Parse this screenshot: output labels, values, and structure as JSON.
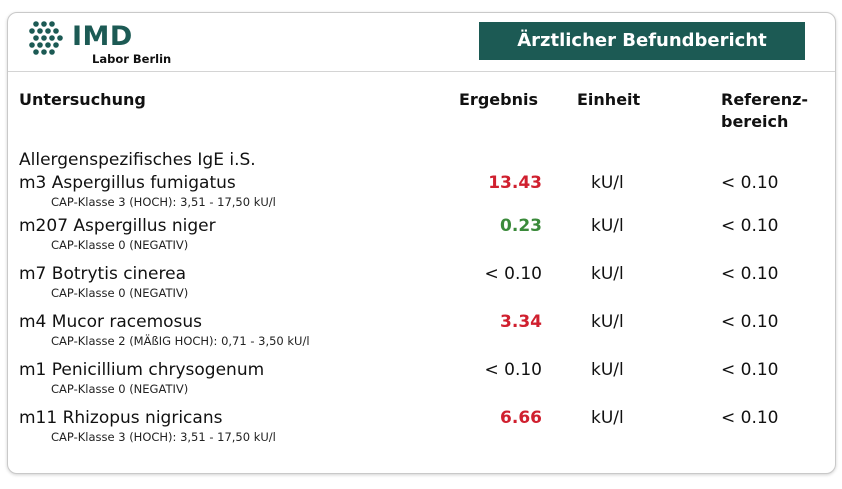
{
  "header": {
    "logo_name": "IMD",
    "logo_sub": "Labor Berlin",
    "banner": "Ärztlicher Befundbericht"
  },
  "columns": {
    "untersuchung": "Untersuchung",
    "ergebnis": "Ergebnis",
    "einheit": "Einheit",
    "referenz_line1": "Referenz-",
    "referenz_line2": "bereich"
  },
  "section_title": "Allergenspezifisches IgE i.S.",
  "colors": {
    "brand": "#1c5a54",
    "high": "#d0202f",
    "normal": "#3a8a3a"
  },
  "rows": [
    {
      "name": "m3 Aspergillus fumigatus",
      "cap": "CAP-Klasse 3 (HOCH): 3,51 - 17,50 kU/l",
      "result": "13.43",
      "status": "high",
      "unit": "kU/l",
      "ref": "< 0.10"
    },
    {
      "name": "m207 Aspergillus niger",
      "cap": "CAP-Klasse 0 (NEGATIV)",
      "result": "0.23",
      "status": "low",
      "unit": "kU/l",
      "ref": "< 0.10"
    },
    {
      "name": "m7 Botrytis cinerea",
      "cap": "CAP-Klasse 0 (NEGATIV)",
      "result": "< 0.10",
      "status": "normal",
      "unit": "kU/l",
      "ref": "< 0.10"
    },
    {
      "name": "m4 Mucor racemosus",
      "cap": "CAP-Klasse 2  (MÄßIG HOCH): 0,71 - 3,50 kU/l",
      "result": "3.34",
      "status": "high",
      "unit": "kU/l",
      "ref": "< 0.10"
    },
    {
      "name": "m1 Penicillium chrysogenum",
      "cap": "CAP-Klasse 0 (NEGATIV)",
      "result": "< 0.10",
      "status": "normal",
      "unit": "kU/l",
      "ref": "< 0.10"
    },
    {
      "name": "m11 Rhizopus nigricans",
      "cap": "CAP-Klasse 3 (HOCH): 3,51 - 17,50 kU/l",
      "result": "6.66",
      "status": "high",
      "unit": "kU/l",
      "ref": "< 0.10"
    }
  ]
}
